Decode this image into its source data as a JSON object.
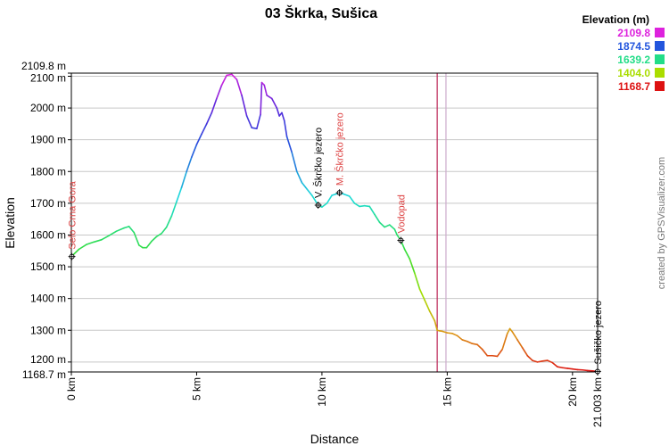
{
  "chart_data": {
    "type": "line",
    "title": "03 Škrka, Sušica",
    "xlabel": "Distance",
    "ylabel": "Elevation",
    "xlim": [
      0,
      21.003
    ],
    "ylim": [
      1168.7,
      2109.8
    ],
    "grid": true,
    "x_ticks": [
      "0 km",
      "5 km",
      "10 km",
      "15 km",
      "20 km",
      "21.003 km"
    ],
    "x_tick_values": [
      0,
      5,
      10,
      15,
      20,
      21.003
    ],
    "y_ticks": [
      "1168.7 m",
      "1200 m",
      "1300 m",
      "1400 m",
      "1500 m",
      "1600 m",
      "1700 m",
      "1800 m",
      "1900 m",
      "2000 m",
      "2100 m",
      "2109.8 m"
    ],
    "y_tick_values": [
      1168.7,
      1200,
      1300,
      1400,
      1500,
      1600,
      1700,
      1800,
      1900,
      2000,
      2100,
      2109.8
    ],
    "legend": {
      "title": "Elevation (m)",
      "placement": "top-right",
      "entries": [
        {
          "label": "2109.8",
          "color": "#dd22dd"
        },
        {
          "label": "1874.5",
          "color": "#2255dd"
        },
        {
          "label": "1639.2",
          "color": "#22dd88"
        },
        {
          "label": "1404.0",
          "color": "#aadd00"
        },
        {
          "label": "1168.7",
          "color": "#dd1111"
        }
      ]
    },
    "vertical_markers": [
      {
        "x": 14.6,
        "color": "#bb2255"
      },
      {
        "x": 14.95,
        "color": "#ccaacc"
      }
    ],
    "waypoints": [
      {
        "name": "Selo Crna Gora",
        "x": 0.02,
        "y": 1532,
        "color": "#dd4444"
      },
      {
        "name": "V. Škrčko jezero",
        "x": 9.85,
        "y": 1694,
        "color": "#000000"
      },
      {
        "name": "M. Škrčko jezero",
        "x": 10.7,
        "y": 1733,
        "color": "#dd4444"
      },
      {
        "name": "Vodopad",
        "x": 13.15,
        "y": 1583,
        "color": "#dd4444"
      },
      {
        "name": "Sušičko jezero",
        "x": 21.0,
        "y": 1170,
        "color": "#000000"
      }
    ],
    "series": [
      {
        "x": [
          0,
          0.3,
          0.6,
          0.9,
          1.2,
          1.5,
          1.8,
          2.1,
          2.3,
          2.5,
          2.7,
          2.85,
          3.0,
          3.2,
          3.4,
          3.6,
          3.8,
          4.0,
          4.2,
          4.4,
          4.6,
          4.8,
          5.0,
          5.2,
          5.4,
          5.6,
          5.8,
          6.0,
          6.2,
          6.4,
          6.6,
          6.8,
          7.0,
          7.2,
          7.4,
          7.55,
          7.6,
          7.7,
          7.8,
          8.0,
          8.2,
          8.3,
          8.4,
          8.5,
          8.6,
          8.8,
          9.0,
          9.2,
          9.4,
          9.6,
          9.85,
          10.0,
          10.2,
          10.4,
          10.6,
          10.7,
          10.9,
          11.1,
          11.3,
          11.5,
          11.7,
          11.9,
          12.1,
          12.3,
          12.5,
          12.7,
          12.9,
          13.0,
          13.15,
          13.3,
          13.5,
          13.7,
          13.9,
          14.1,
          14.3,
          14.5,
          14.6,
          14.7,
          14.8,
          15.0,
          15.2,
          15.4,
          15.6,
          15.8,
          16.0,
          16.2,
          16.4,
          16.6,
          16.8,
          17.0,
          17.2,
          17.4,
          17.5,
          17.6,
          17.8,
          18.0,
          18.2,
          18.4,
          18.6,
          18.8,
          19.0,
          19.2,
          19.4,
          19.6,
          19.8,
          20.0,
          20.2,
          20.4,
          20.6,
          20.8,
          21.003
        ],
        "y": [
          1532,
          1555,
          1570,
          1578,
          1585,
          1598,
          1612,
          1622,
          1627,
          1608,
          1568,
          1560,
          1560,
          1580,
          1595,
          1605,
          1625,
          1660,
          1705,
          1750,
          1800,
          1845,
          1885,
          1918,
          1950,
          1985,
          2030,
          2072,
          2103,
          2106,
          2090,
          2040,
          1975,
          1938,
          1935,
          1980,
          2080,
          2072,
          2040,
          2030,
          2000,
          1975,
          1985,
          1960,
          1910,
          1860,
          1800,
          1765,
          1745,
          1725,
          1694,
          1688,
          1700,
          1725,
          1730,
          1733,
          1728,
          1722,
          1700,
          1690,
          1692,
          1690,
          1665,
          1640,
          1625,
          1632,
          1618,
          1600,
          1583,
          1555,
          1525,
          1480,
          1430,
          1395,
          1360,
          1330,
          1300,
          1298,
          1297,
          1292,
          1290,
          1283,
          1270,
          1265,
          1258,
          1255,
          1240,
          1220,
          1220,
          1218,
          1240,
          1290,
          1305,
          1295,
          1270,
          1245,
          1220,
          1205,
          1200,
          1203,
          1205,
          1198,
          1185,
          1182,
          1180,
          1178,
          1176,
          1175,
          1173,
          1172,
          1170
        ]
      }
    ]
  },
  "credit": "created by GPSVisualizer.com"
}
